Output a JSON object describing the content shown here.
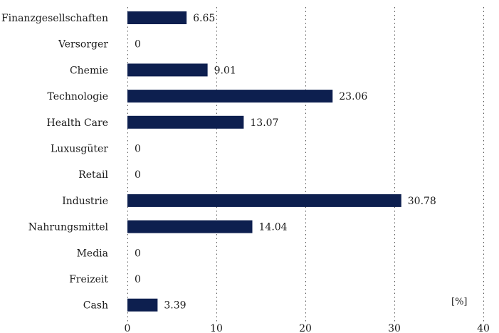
{
  "chart_data": {
    "type": "bar",
    "orientation": "horizontal",
    "categories": [
      "Finanzgesellschaften",
      "Versorger",
      "Chemie",
      "Technologie",
      "Health Care",
      "Luxusgüter",
      "Retail",
      "Industrie",
      "Nahrungsmittel",
      "Media",
      "Freizeit",
      "Cash"
    ],
    "values": [
      6.65,
      0,
      9.01,
      23.06,
      13.07,
      0,
      0,
      30.78,
      14.04,
      0,
      0,
      3.39
    ],
    "value_labels": [
      "6.65",
      "0",
      "9.01",
      "23.06",
      "13.07",
      "0",
      "0",
      "30.78",
      "14.04",
      "0",
      "0",
      "3.39"
    ],
    "xlim": [
      0,
      40
    ],
    "xticks": [
      0,
      10,
      20,
      30,
      40
    ],
    "xtick_labels": [
      "0",
      "10",
      "20",
      "30",
      "40"
    ],
    "unit_label": "[%]",
    "grid": "vertical dotted",
    "bar_color": "#0d1f4f"
  }
}
